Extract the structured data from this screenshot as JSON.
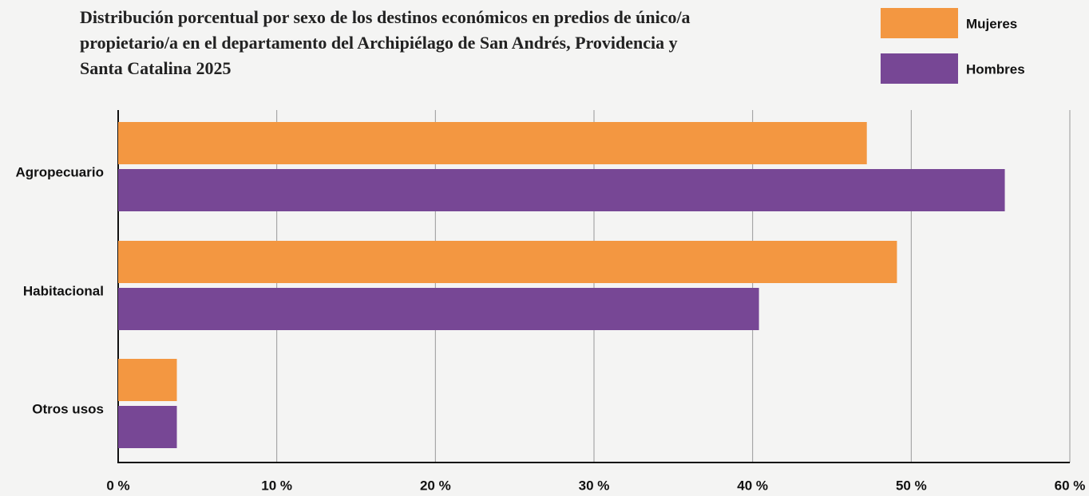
{
  "chart_data": {
    "type": "hbar",
    "title": "Distribución porcentual por sexo de los destinos económicos en predios de único/a propietario/a en el departamento del Archipiélago de San Andrés, Providencia y Santa Catalina 2025",
    "categories": [
      "Agropecuario",
      "Habitacional",
      "Otros usos"
    ],
    "series": [
      {
        "name": "Mujeres",
        "color": "#f39741",
        "values": [
          47.2,
          49.1,
          3.7
        ]
      },
      {
        "name": "Hombres",
        "color": "#774795",
        "values": [
          55.9,
          40.4,
          3.7
        ]
      }
    ],
    "xlim": [
      0,
      60
    ],
    "xticks": [
      {
        "value": 0,
        "label": "0 %"
      },
      {
        "value": 10,
        "label": "10 %"
      },
      {
        "value": 20,
        "label": "20 %"
      },
      {
        "value": 30,
        "label": "30 %"
      },
      {
        "value": 40,
        "label": "40 %"
      },
      {
        "value": 50,
        "label": "50 %"
      },
      {
        "value": 60,
        "label": "60 %"
      }
    ],
    "grid": true,
    "legend": "top-right"
  }
}
